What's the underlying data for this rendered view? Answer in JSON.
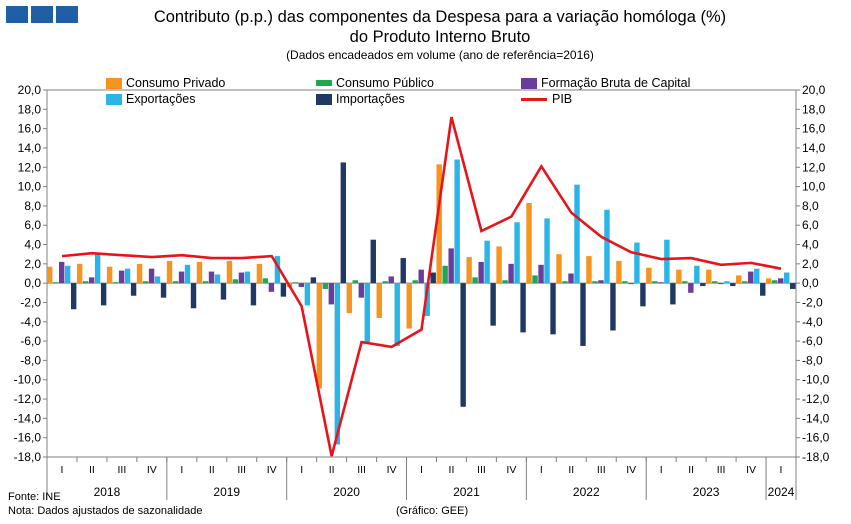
{
  "header": {
    "title_line1": "Contributo (p.p.) das componentes da Despesa para a variação homóloga (%)",
    "title_line2": "do Produto Interno Bruto",
    "subtitle": "(Dados encadeados em volume (ano de referência=2016)"
  },
  "footer": {
    "source": "Fonte:  INE",
    "note": "Nota: Dados ajustados de sazonalidade",
    "credit": "(Gráfico: GEE)"
  },
  "colors": {
    "consumo_privado": "#f7941d",
    "consumo_publico": "#1fa84f",
    "fbc": "#6a3d9a",
    "exportacoes": "#29b5e8",
    "importacoes": "#1f3864",
    "pib": "#e8141b"
  },
  "chart_data": {
    "type": "bar",
    "ylim": [
      -18,
      20
    ],
    "yticks": [
      "20,0",
      "18,0",
      "16,0",
      "14,0",
      "12,0",
      "10,0",
      "8,0",
      "6,0",
      "4,0",
      "2,0",
      "0,0",
      "-2,0",
      "-4,0",
      "-6,0",
      "-8,0",
      "-10,0",
      "-12,0",
      "-14,0",
      "-16,0",
      "-18,0"
    ],
    "quarters": [
      "I",
      "II",
      "III",
      "IV",
      "I",
      "II",
      "III",
      "IV",
      "I",
      "II",
      "III",
      "IV",
      "I",
      "II",
      "III",
      "IV",
      "I",
      "II",
      "III",
      "IV",
      "I",
      "II",
      "III",
      "IV",
      "I"
    ],
    "years": [
      {
        "label": "2018",
        "quarters": 4
      },
      {
        "label": "2019",
        "quarters": 4
      },
      {
        "label": "2020",
        "quarters": 4
      },
      {
        "label": "2021",
        "quarters": 4
      },
      {
        "label": "2022",
        "quarters": 4
      },
      {
        "label": "2023",
        "quarters": 4
      },
      {
        "label": "2024",
        "quarters": 1
      }
    ],
    "series": [
      {
        "key": "consumo_privado",
        "name": "Consumo Privado",
        "values": [
          1.7,
          2.0,
          1.7,
          2.0,
          2.3,
          2.2,
          2.3,
          2.0,
          -0.4,
          -10.9,
          -3.1,
          -3.6,
          -4.7,
          12.3,
          2.7,
          3.8,
          8.3,
          3.0,
          2.8,
          2.3,
          1.6,
          1.4,
          1.4,
          0.8,
          0.5
        ]
      },
      {
        "key": "consumo_publico",
        "name": "Consumo Público",
        "values": [
          0.1,
          0.2,
          0.1,
          0.2,
          0.2,
          0.2,
          0.4,
          0.5,
          0.1,
          -0.6,
          0.3,
          0.2,
          0.3,
          1.8,
          0.6,
          0.3,
          0.8,
          0.2,
          0.2,
          0.2,
          0.2,
          0.2,
          0.2,
          0.2,
          0.3
        ]
      },
      {
        "key": "fbc",
        "name": "Formação Bruta de Capital",
        "values": [
          2.2,
          0.6,
          1.3,
          1.5,
          1.2,
          1.2,
          1.1,
          -0.9,
          -0.4,
          -2.2,
          -1.5,
          0.7,
          1.4,
          3.6,
          2.2,
          2.0,
          1.9,
          1.0,
          0.3,
          -0.1,
          0.1,
          -1.0,
          -0.1,
          1.2,
          0.5
        ]
      },
      {
        "key": "exportacoes",
        "name": "Exportações",
        "values": [
          1.8,
          3.0,
          1.5,
          0.7,
          1.9,
          0.9,
          1.2,
          2.8,
          -2.3,
          -16.7,
          -6.3,
          -6.5,
          -3.4,
          12.8,
          4.4,
          6.3,
          6.7,
          10.2,
          7.6,
          4.2,
          4.5,
          1.8,
          0.2,
          1.5,
          1.1
        ]
      },
      {
        "key": "importacoes",
        "name": "Importações",
        "values": [
          -2.7,
          -2.3,
          -1.3,
          -1.5,
          -2.6,
          -1.7,
          -2.3,
          -1.4,
          0.6,
          12.5,
          4.5,
          2.6,
          1.1,
          -12.8,
          -4.4,
          -5.1,
          -5.3,
          -6.5,
          -4.9,
          -2.4,
          -2.2,
          -0.3,
          -0.3,
          -1.3,
          -0.6
        ]
      }
    ],
    "line": {
      "key": "pib",
      "name": "PIB",
      "values": [
        2.8,
        3.1,
        2.9,
        2.7,
        2.9,
        2.6,
        2.6,
        2.8,
        -2.4,
        -17.9,
        -6.1,
        -6.6,
        -4.8,
        17.2,
        5.4,
        6.9,
        12.1,
        7.3,
        4.8,
        3.2,
        2.5,
        2.6,
        1.9,
        2.1,
        1.5
      ]
    }
  }
}
